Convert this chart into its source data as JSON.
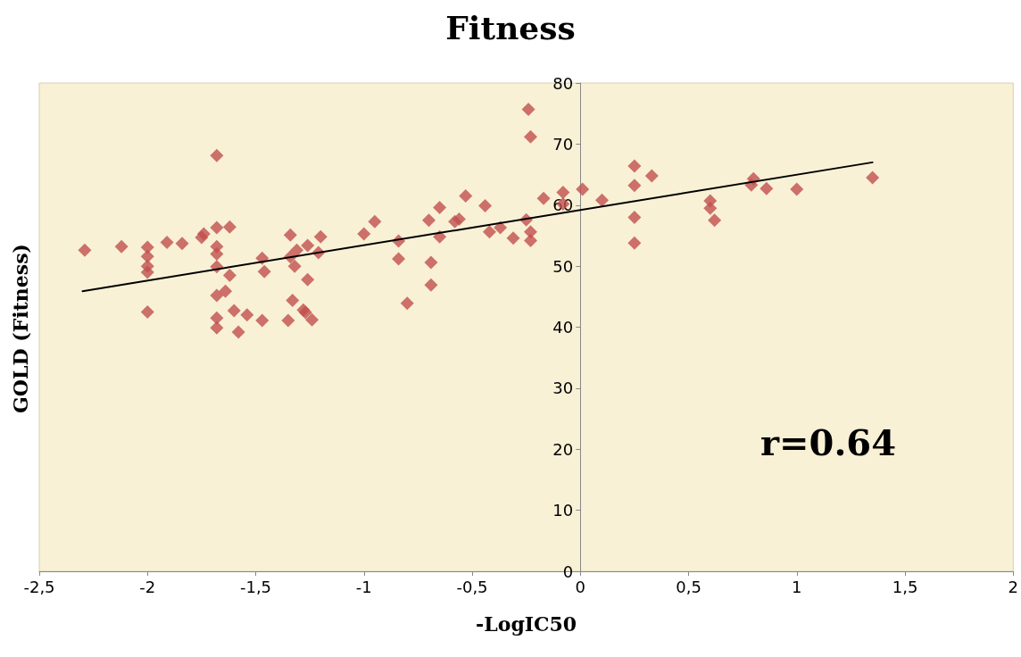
{
  "chart_data": {
    "type": "scatter",
    "title": "Fitness",
    "xlabel": "-LogIC50",
    "ylabel": "GOLD (Fitness)",
    "annotations": [
      "r=0.64"
    ],
    "xlim": [
      -2.5,
      2
    ],
    "xticks": [
      {
        "value": -2.5,
        "label": "-2,5"
      },
      -2,
      {
        "value": -1.5,
        "label": "-1,5"
      },
      -1,
      {
        "value": -0.5,
        "label": "-0,5"
      },
      0,
      {
        "value": 0.5,
        "label": "0,5"
      },
      1,
      {
        "value": 1.5,
        "label": "1,5"
      },
      2
    ],
    "ylim": [
      0,
      80
    ],
    "yticks": [
      0,
      10,
      20,
      30,
      40,
      50,
      60,
      70,
      80
    ],
    "grid": false,
    "marker": "diamond",
    "series": [
      {
        "color": "#c0504d",
        "x": [
          -2.29,
          -2.12,
          -2.0,
          -2.0,
          -2.0,
          -2.0,
          -2.0,
          -1.91,
          -1.84,
          -1.74,
          -1.75,
          -1.68,
          -1.62,
          -1.68,
          -1.68,
          -1.68,
          -1.68,
          -1.62,
          -1.68,
          -1.64,
          -1.68,
          -1.68,
          -1.6,
          -1.54,
          -1.58,
          -1.47,
          -1.47,
          -1.46,
          -1.34,
          -1.31,
          -1.34,
          -1.32,
          -1.26,
          -1.26,
          -1.2,
          -1.21,
          -1.33,
          -1.35,
          -1.27,
          -1.24,
          -1.28,
          -1.0,
          -0.95,
          -0.84,
          -0.84,
          -0.8,
          -0.7,
          -0.65,
          -0.65,
          -0.69,
          -0.69,
          -0.58,
          -0.56,
          -0.53,
          -0.44,
          -0.42,
          -0.37,
          -0.31,
          -0.25,
          -0.23,
          -0.23,
          -0.24,
          -0.23,
          -0.17,
          -0.08,
          -0.08,
          0.01,
          0.1,
          0.25,
          0.25,
          0.25,
          0.25,
          0.33,
          0.6,
          0.6,
          0.62,
          0.8,
          0.79,
          0.86,
          1.0,
          1.35
        ],
        "values": [
          52.6,
          53.2,
          53.1,
          51.6,
          50.0,
          49.0,
          42.5,
          53.9,
          53.7,
          55.3,
          54.7,
          56.3,
          56.4,
          68.1,
          53.2,
          52.0,
          49.9,
          48.5,
          45.2,
          45.9,
          41.5,
          39.9,
          42.7,
          42.0,
          39.2,
          41.1,
          51.3,
          49.1,
          55.1,
          52.6,
          51.5,
          50.0,
          47.8,
          53.4,
          54.8,
          52.2,
          44.4,
          41.1,
          42.4,
          41.2,
          42.8,
          55.3,
          57.3,
          54.1,
          51.2,
          43.9,
          57.5,
          59.6,
          54.8,
          50.6,
          46.9,
          57.3,
          57.7,
          61.5,
          59.9,
          55.6,
          56.3,
          54.6,
          57.6,
          55.6,
          54.2,
          75.7,
          71.2,
          61.1,
          62.1,
          60.2,
          62.6,
          60.8,
          66.4,
          63.2,
          58.0,
          53.8,
          64.8,
          60.7,
          59.5,
          57.5,
          64.3,
          63.3,
          62.7,
          62.6,
          64.5
        ]
      },
      {
        "type": "line",
        "color": "#000000",
        "marker": "none",
        "line_style": "solid",
        "x": [
          -2.3,
          1.35
        ],
        "values": [
          45.9,
          67.0
        ]
      }
    ]
  }
}
